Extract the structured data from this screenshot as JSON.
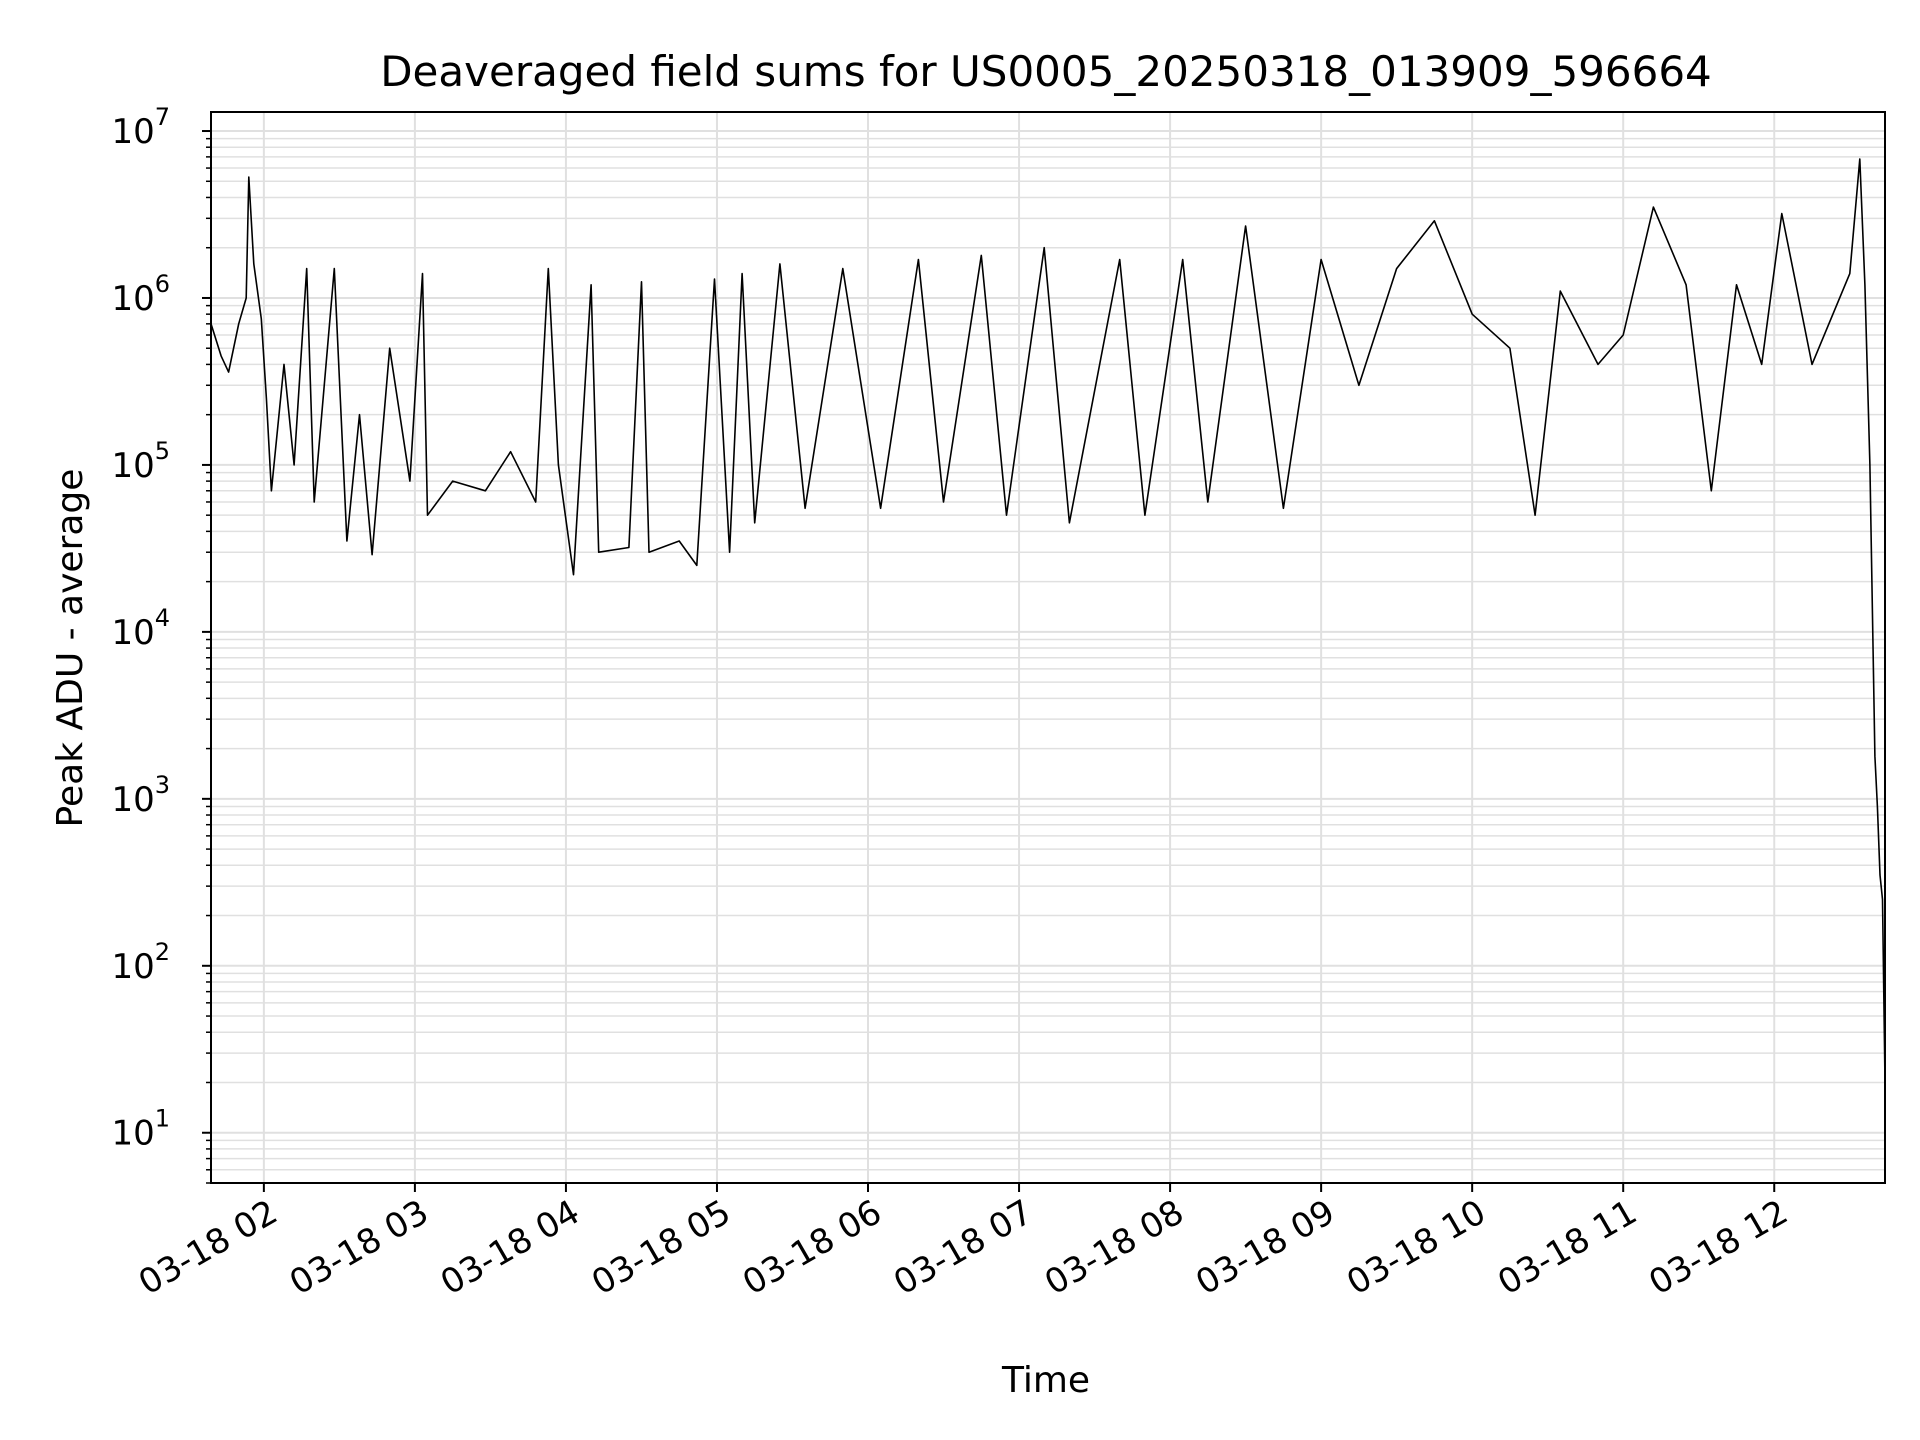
{
  "chart_data": {
    "type": "line",
    "title": "Deaveraged field sums for US0005_20250318_013909_596664",
    "xlabel": "Time",
    "ylabel": "Peak ADU - average",
    "y_scale": "log",
    "ylim": [
      5,
      13000000
    ],
    "xlim": [
      "2025-03-18 01:39",
      "2025-03-18 12:44"
    ],
    "grid": true,
    "line_color": "#000000",
    "grid_color": "#e0e0e0",
    "x_ticks": [
      {
        "value": "2025-03-18 02:00",
        "label": "03-18 02"
      },
      {
        "value": "2025-03-18 03:00",
        "label": "03-18 03"
      },
      {
        "value": "2025-03-18 04:00",
        "label": "03-18 04"
      },
      {
        "value": "2025-03-18 05:00",
        "label": "03-18 05"
      },
      {
        "value": "2025-03-18 06:00",
        "label": "03-18 06"
      },
      {
        "value": "2025-03-18 07:00",
        "label": "03-18 07"
      },
      {
        "value": "2025-03-18 08:00",
        "label": "03-18 08"
      },
      {
        "value": "2025-03-18 09:00",
        "label": "03-18 09"
      },
      {
        "value": "2025-03-18 10:00",
        "label": "03-18 10"
      },
      {
        "value": "2025-03-18 11:00",
        "label": "03-18 11"
      },
      {
        "value": "2025-03-18 12:00",
        "label": "03-18 12"
      }
    ],
    "y_ticks": [
      {
        "value": 10,
        "base": "10",
        "exp": "1"
      },
      {
        "value": 100,
        "base": "10",
        "exp": "2"
      },
      {
        "value": 1000,
        "base": "10",
        "exp": "3"
      },
      {
        "value": 10000,
        "base": "10",
        "exp": "4"
      },
      {
        "value": 100000,
        "base": "10",
        "exp": "5"
      },
      {
        "value": 1000000,
        "base": "10",
        "exp": "6"
      },
      {
        "value": 10000000,
        "base": "10",
        "exp": "7"
      }
    ],
    "series": [
      {
        "values": [
          [
            "2025-03-18 01:39",
            700000
          ],
          [
            "2025-03-18 01:43",
            450000
          ],
          [
            "2025-03-18 01:46",
            360000
          ],
          [
            "2025-03-18 01:50",
            700000
          ],
          [
            "2025-03-18 01:53",
            1000000
          ],
          [
            "2025-03-18 01:54",
            5300000
          ],
          [
            "2025-03-18 01:56",
            1600000
          ],
          [
            "2025-03-18 01:59",
            750000
          ],
          [
            "2025-03-18 02:01",
            250000
          ],
          [
            "2025-03-18 02:03",
            70000
          ],
          [
            "2025-03-18 02:08",
            400000
          ],
          [
            "2025-03-18 02:12",
            100000
          ],
          [
            "2025-03-18 02:17",
            1500000
          ],
          [
            "2025-03-18 02:20",
            60000
          ],
          [
            "2025-03-18 02:28",
            1500000
          ],
          [
            "2025-03-18 02:33",
            35000
          ],
          [
            "2025-03-18 02:38",
            200000
          ],
          [
            "2025-03-18 02:43",
            29000
          ],
          [
            "2025-03-18 02:50",
            500000
          ],
          [
            "2025-03-18 02:58",
            80000
          ],
          [
            "2025-03-18 03:03",
            1400000
          ],
          [
            "2025-03-18 03:05",
            50000
          ],
          [
            "2025-03-18 03:15",
            80000
          ],
          [
            "2025-03-18 03:28",
            70000
          ],
          [
            "2025-03-18 03:38",
            120000
          ],
          [
            "2025-03-18 03:48",
            60000
          ],
          [
            "2025-03-18 03:53",
            1500000
          ],
          [
            "2025-03-18 03:57",
            100000
          ],
          [
            "2025-03-18 04:03",
            22000
          ],
          [
            "2025-03-18 04:10",
            1200000
          ],
          [
            "2025-03-18 04:13",
            30000
          ],
          [
            "2025-03-18 04:25",
            32000
          ],
          [
            "2025-03-18 04:30",
            1250000
          ],
          [
            "2025-03-18 04:33",
            30000
          ],
          [
            "2025-03-18 04:45",
            35000
          ],
          [
            "2025-03-18 04:52",
            25000
          ],
          [
            "2025-03-18 04:59",
            1300000
          ],
          [
            "2025-03-18 05:05",
            30000
          ],
          [
            "2025-03-18 05:10",
            1400000
          ],
          [
            "2025-03-18 05:15",
            45000
          ],
          [
            "2025-03-18 05:25",
            1600000
          ],
          [
            "2025-03-18 05:35",
            55000
          ],
          [
            "2025-03-18 05:50",
            1500000
          ],
          [
            "2025-03-18 06:05",
            55000
          ],
          [
            "2025-03-18 06:20",
            1700000
          ],
          [
            "2025-03-18 06:30",
            60000
          ],
          [
            "2025-03-18 06:45",
            1800000
          ],
          [
            "2025-03-18 06:55",
            50000
          ],
          [
            "2025-03-18 07:10",
            2000000
          ],
          [
            "2025-03-18 07:20",
            45000
          ],
          [
            "2025-03-18 07:40",
            1700000
          ],
          [
            "2025-03-18 07:50",
            50000
          ],
          [
            "2025-03-18 08:05",
            1700000
          ],
          [
            "2025-03-18 08:15",
            60000
          ],
          [
            "2025-03-18 08:30",
            2700000
          ],
          [
            "2025-03-18 08:45",
            55000
          ],
          [
            "2025-03-18 09:00",
            1700000
          ],
          [
            "2025-03-18 09:15",
            300000
          ],
          [
            "2025-03-18 09:30",
            1500000
          ],
          [
            "2025-03-18 09:45",
            2900000
          ],
          [
            "2025-03-18 10:00",
            800000
          ],
          [
            "2025-03-18 10:15",
            500000
          ],
          [
            "2025-03-18 10:25",
            50000
          ],
          [
            "2025-03-18 10:35",
            1100000
          ],
          [
            "2025-03-18 10:50",
            400000
          ],
          [
            "2025-03-18 11:00",
            600000
          ],
          [
            "2025-03-18 11:12",
            3500000
          ],
          [
            "2025-03-18 11:25",
            1200000
          ],
          [
            "2025-03-18 11:35",
            70000
          ],
          [
            "2025-03-18 11:45",
            1200000
          ],
          [
            "2025-03-18 11:55",
            400000
          ],
          [
            "2025-03-18 12:03",
            3200000
          ],
          [
            "2025-03-18 12:15",
            400000
          ],
          [
            "2025-03-18 12:30",
            1400000
          ],
          [
            "2025-03-18 12:34",
            6800000
          ],
          [
            "2025-03-18 12:36",
            1200000
          ],
          [
            "2025-03-18 12:38",
            100000
          ],
          [
            "2025-03-18 12:40",
            1800
          ],
          [
            "2025-03-18 12:41",
            900
          ],
          [
            "2025-03-18 12:42",
            350
          ],
          [
            "2025-03-18 12:43",
            250
          ],
          [
            "2025-03-18 12:44",
            20
          ]
        ]
      }
    ]
  }
}
